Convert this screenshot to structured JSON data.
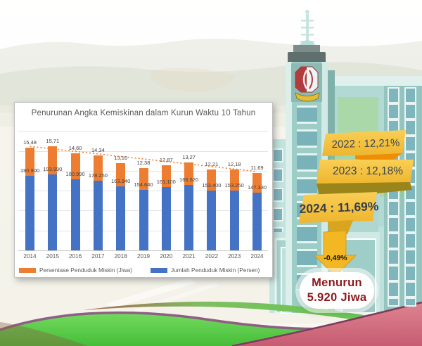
{
  "title": "Penurunan Angka Kemiskinan dalam Kurun Waktu 10 Tahun",
  "chart_data": {
    "type": "bar",
    "title": "Penurunan Angka Kemiskinan dalam Kurun Waktu 10 Tahun",
    "categories": [
      "2014",
      "2015",
      "2016",
      "2017",
      "2018",
      "2019",
      "2020",
      "2021",
      "2022",
      "2023",
      "2024"
    ],
    "series": [
      {
        "name": "Persentase Penduduk Miskin (Jiwa)",
        "color": "#ED7D31",
        "values": [
          15.48,
          15.71,
          14.6,
          14.34,
          13.16,
          12.38,
          12.87,
          13.27,
          12.21,
          12.18,
          11.69
        ],
        "labels": [
          "15,48",
          "15,71",
          "14,60",
          "14,34",
          "13,16",
          "12,38",
          "12,87",
          "13,27",
          "12,21",
          "12,18",
          "11,69"
        ]
      },
      {
        "name": "Jumlah Penduduk Miskin (Persen)",
        "color": "#4472C4",
        "values": [
          190900,
          193990,
          180990,
          178250,
          163940,
          154640,
          161100,
          166520,
          153400,
          153250,
          147330
        ],
        "labels": [
          "190.900",
          "193.990",
          "180.990",
          "178.250",
          "163.940",
          "154.640",
          "161.100",
          "166.520",
          "153.400",
          "153.250",
          "147.330"
        ]
      }
    ],
    "trendline": {
      "style": "dotted",
      "color": "#ED7D31"
    },
    "legend_position": "bottom",
    "grid": "horizontal"
  },
  "ribbons": [
    {
      "label": "2022 : 12,21%"
    },
    {
      "label": "2023 : 12,18%"
    },
    {
      "label": "2024 : 11,69%",
      "emphasis": true
    }
  ],
  "arrow": {
    "label": "-0,49%"
  },
  "callout": {
    "line1": "Menurun",
    "line2": "5.920 Jiwa"
  },
  "colors": {
    "bar_orange": "#ED7D31",
    "bar_blue": "#4472C4",
    "ribbon_yellow": "#F6C545",
    "ribbon_fold_orange": "#EF8E05",
    "ribbon_fold_olive": "#9A851C",
    "callout_text": "#8C1A1C",
    "wave_green": "#5ECC4D",
    "wave_purple": "#8E5E84",
    "wave_pink": "#D97E8C"
  }
}
